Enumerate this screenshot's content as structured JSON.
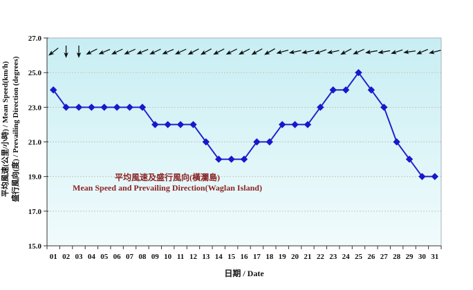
{
  "title": {
    "line_zh": "平均風速及盛行風向(橫瀾島)",
    "line_en": "Mean Speed and Prevailing Direction(Waglan Island)",
    "color": "#8B2323"
  },
  "axes": {
    "y_label_line1": "平均風速(公里/小時) / Mean Speed(km/h)",
    "y_label_line2": "盛行風向(度) / Prevailing Direction (degrees)",
    "x_label": "日期 / Date"
  },
  "chart_data": {
    "type": "line",
    "title": "平均風速及盛行風向(橫瀾島) / Mean Speed and Prevailing Direction(Waglan Island)",
    "xlabel": "日期 / Date",
    "ylabel": "平均風速(公里/小時) / Mean Speed(km/h) ; 盛行風向(度) / Prevailing Direction (degrees)",
    "categories": [
      "01",
      "02",
      "03",
      "04",
      "05",
      "06",
      "07",
      "08",
      "09",
      "10",
      "11",
      "12",
      "13",
      "14",
      "15",
      "16",
      "17",
      "18",
      "19",
      "20",
      "21",
      "22",
      "23",
      "24",
      "25",
      "26",
      "27",
      "28",
      "29",
      "30",
      "31"
    ],
    "series": [
      {
        "name": "Mean Speed (km/h)",
        "values": [
          24.0,
          23.0,
          23.0,
          23.0,
          23.0,
          23.0,
          23.0,
          23.0,
          22.0,
          22.0,
          22.0,
          22.0,
          21.0,
          20.0,
          20.0,
          20.0,
          21.0,
          21.0,
          22.0,
          22.0,
          22.0,
          23.0,
          24.0,
          24.0,
          25.0,
          24.0,
          23.0,
          21.0,
          20.0,
          19.0,
          19.0
        ]
      }
    ],
    "wind_arrow_rotation_deg": [
      142,
      90,
      90,
      153,
      157,
      155,
      155,
      157,
      155,
      157,
      155,
      152,
      151,
      152,
      153,
      153,
      151,
      150,
      165,
      168,
      168,
      160,
      168,
      152,
      156,
      170,
      170,
      162,
      172,
      157,
      166
    ],
    "ylim": [
      15.0,
      27.0
    ],
    "y_major_step": 2.0,
    "y_tick_labels": [
      "27.0",
      "25.0",
      "23.0",
      "21.0",
      "19.0",
      "17.0",
      "15.0"
    ],
    "grid": "horizontal-dotted",
    "legend_position": "none"
  },
  "colors": {
    "line": "#2222cc",
    "marker": "#1818cc",
    "plot_bg_top": "#c7eef3",
    "plot_bg_bottom": "#f1fbfc",
    "gridline": "#c6c6b8",
    "axis": "#333333",
    "border": "#a9b2b9",
    "arrow": "#111111",
    "tick_text": "#111111",
    "page_bg": "#ffffff"
  }
}
